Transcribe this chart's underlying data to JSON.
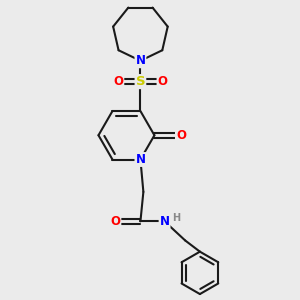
{
  "background_color": "#ebebeb",
  "bond_color": "#1a1a1a",
  "atom_colors": {
    "N": "#0000ff",
    "O": "#ff0000",
    "S": "#cccc00",
    "H": "#888888",
    "C": "#1a1a1a"
  },
  "figsize": [
    3.0,
    3.0
  ],
  "dpi": 100
}
